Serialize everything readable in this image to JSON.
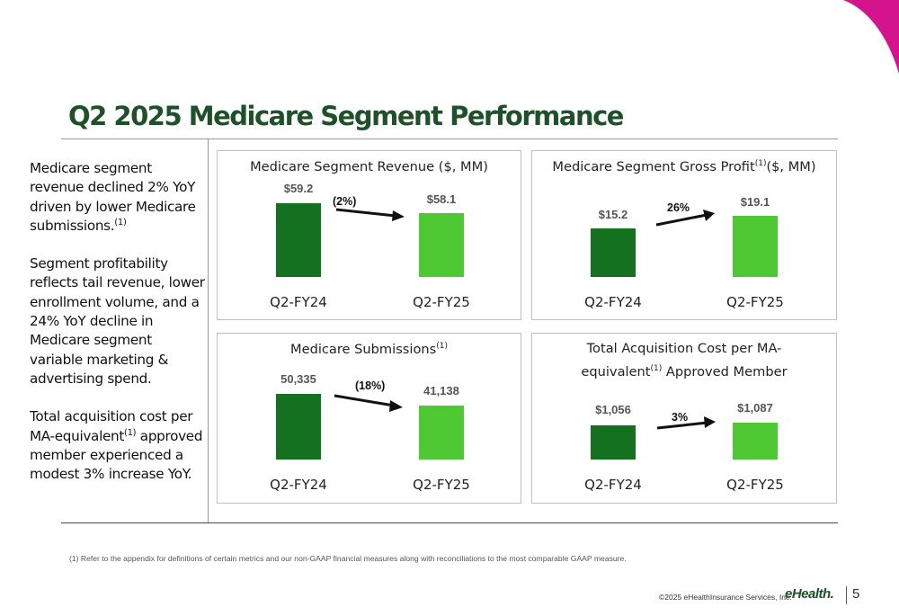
{
  "title": "Q2 2025 Medicare Segment Performance",
  "commentary": [
    {
      "text": "Medicare segment revenue declined 2% YoY driven by lower Medicare submissions.",
      "sup": "(1)"
    },
    {
      "text": "Segment profitability reflects tail revenue, lower enrollment volume, and a 24% YoY decline in Medicare segment variable marketing & advertising spend.",
      "sup": ""
    },
    {
      "text_before": "Total acquisition cost per MA-equivalent",
      "sup": "(1)",
      "text_after": " approved member experienced a modest 3% increase YoY."
    }
  ],
  "colors": {
    "brand_green": "#1e5128",
    "prior_bar": "#14711f",
    "current_bar": "#4ec933",
    "accent_magenta": "#d4148c"
  },
  "chart_data": [
    {
      "type": "bar",
      "title": "Medicare Segment Revenue ($, MM)",
      "categories": [
        "Q2-FY24",
        "Q2-FY25"
      ],
      "values": [
        59.2,
        58.1
      ],
      "value_labels": [
        "$59.2",
        "$58.1"
      ],
      "change_label": "(2%)"
    },
    {
      "type": "bar",
      "title_main": "Medicare Segment Gross Profit",
      "title_sup": "(1)",
      "title_tail": "($, MM)",
      "categories": [
        "Q2-FY24",
        "Q2-FY25"
      ],
      "values": [
        15.2,
        19.1
      ],
      "value_labels": [
        "$15.2",
        "$19.1"
      ],
      "change_label": "26%"
    },
    {
      "type": "bar",
      "title_main": "Medicare Submissions",
      "title_sup": "(1)",
      "categories": [
        "Q2-FY24",
        "Q2-FY25"
      ],
      "values": [
        50335,
        41138
      ],
      "value_labels": [
        "50,335",
        "41,138"
      ],
      "change_label": "(18%)"
    },
    {
      "type": "bar",
      "title_line1": "Total Acquisition Cost per MA-",
      "title_line2_before": "equivalent",
      "title_sup": "(1)",
      "title_line2_after": " Approved Member",
      "categories": [
        "Q2-FY24",
        "Q2-FY25"
      ],
      "values": [
        1056,
        1087
      ],
      "value_labels": [
        "$1,056",
        "$1,087"
      ],
      "change_label": "3%"
    }
  ],
  "footnote": "(1)    Refer to the appendix for definitions of certain metrics and our non-GAAP financial measures along with reconciliations to the most comparable GAAP measure.",
  "copyright": "©2025 eHealthInsurance Services, Inc.",
  "logo_text": "eHealth.",
  "page_number": "5"
}
